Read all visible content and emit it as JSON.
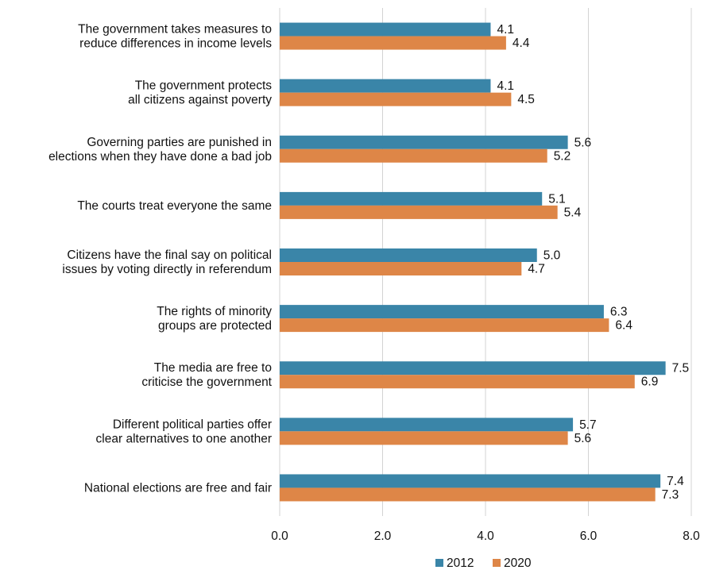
{
  "chart_data": {
    "type": "bar",
    "orientation": "horizontal",
    "categories": [
      [
        "The government takes measures to",
        "reduce differences in income levels"
      ],
      [
        "The government protects",
        "all citizens against poverty"
      ],
      [
        "Governing parties are punished in",
        "elections when they have done a bad job"
      ],
      [
        "The courts treat everyone the same"
      ],
      [
        "Citizens have the final say on political",
        "issues by voting directly in referendum"
      ],
      [
        "The rights of minority",
        "groups are protected"
      ],
      [
        "The media are free to",
        "criticise the government"
      ],
      [
        "Different political parties offer",
        "clear alternatives to one another"
      ],
      [
        "National elections are free and fair"
      ]
    ],
    "series": [
      {
        "name": "2012",
        "color": "#3a85a8",
        "values": [
          4.1,
          4.1,
          5.6,
          5.1,
          5.0,
          6.3,
          7.5,
          5.7,
          7.4
        ],
        "labels": [
          "4.1",
          "4.1",
          "5.6",
          "5.1",
          "5.0",
          "6.3",
          "7.5",
          "5.7",
          "7.4"
        ]
      },
      {
        "name": "2020",
        "color": "#de8647",
        "values": [
          4.4,
          4.5,
          5.2,
          5.4,
          4.7,
          6.4,
          6.9,
          5.6,
          7.3
        ],
        "labels": [
          "4.4",
          "4.5",
          "5.2",
          "5.4",
          "4.7",
          "6.4",
          "6.9",
          "5.6",
          "7.3"
        ]
      }
    ],
    "xlim": [
      0,
      8
    ],
    "xticks": [
      "0.0",
      "2.0",
      "4.0",
      "6.0",
      "8.0"
    ],
    "grid": true,
    "legend": "bottom"
  }
}
